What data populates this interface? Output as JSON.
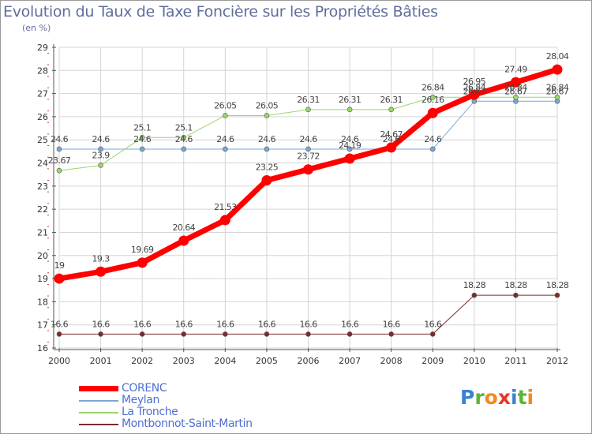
{
  "title": "Evolution du Taux de Taxe Foncière sur les Propriétés Bâties",
  "subtitle": "(en %)",
  "logo": {
    "text": "Proxiti",
    "letters": [
      {
        "ch": "P",
        "color": "#3d7fd0"
      },
      {
        "ch": "r",
        "color": "#5ab43a"
      },
      {
        "ch": "o",
        "color": "#f08a1c"
      },
      {
        "ch": "x",
        "color": "#e03a2c"
      },
      {
        "ch": "i",
        "color": "#3d7fd0"
      },
      {
        "ch": "t",
        "color": "#5ab43a"
      },
      {
        "ch": "i",
        "color": "#f08a1c"
      }
    ]
  },
  "chart_data": {
    "type": "line",
    "x": [
      "2000",
      "2001",
      "2002",
      "2003",
      "2004",
      "2005",
      "2006",
      "2007",
      "2008",
      "2009",
      "2010",
      "2011",
      "2012"
    ],
    "ylim": [
      16,
      29
    ],
    "yticks": [
      16,
      17,
      18,
      19,
      20,
      21,
      22,
      23,
      24,
      25,
      26,
      27,
      28,
      29
    ],
    "grid": true,
    "legend": "bottom-left",
    "series": [
      {
        "name": "Montbonnot-Saint-Martin",
        "color": "#7b2b2b",
        "width": 1,
        "values": [
          16.6,
          16.6,
          16.6,
          16.6,
          16.6,
          16.6,
          16.6,
          16.6,
          16.6,
          16.6,
          18.28,
          18.28,
          18.28
        ],
        "labels": [
          "16.6",
          "16.6",
          "16.6",
          "16.6",
          "16.6",
          "16.6",
          "16.6",
          "16.6",
          "16.6",
          "16.6",
          "18.28",
          "18.28",
          "18.28"
        ]
      },
      {
        "name": "Meylan",
        "color": "#7aa7d6",
        "width": 1,
        "values": [
          24.6,
          24.6,
          24.6,
          24.6,
          24.6,
          24.6,
          24.6,
          24.6,
          24.6,
          24.6,
          26.67,
          26.67,
          26.67
        ],
        "labels": [
          "24.6",
          "24.6",
          "24.6",
          "24.6",
          "24.6",
          "24.6",
          "24.6",
          "24.6",
          "24.6",
          "24.6",
          "26.67",
          "26.67",
          "26.67"
        ]
      },
      {
        "name": "La Tronche",
        "color": "#9ad66a",
        "width": 1,
        "values": [
          23.67,
          23.9,
          25.1,
          25.1,
          26.05,
          26.05,
          26.31,
          26.31,
          26.31,
          26.84,
          26.84,
          26.84,
          26.84
        ],
        "labels": [
          "23.67",
          "23.9",
          "25.1",
          "25.1",
          "26.05",
          "26.05",
          "26.31",
          "26.31",
          "26.31",
          "26.84",
          "26.84",
          "26.84",
          "26.84"
        ]
      },
      {
        "name": "CORENC",
        "color": "#ff0000",
        "width": 7,
        "values": [
          19,
          19.3,
          19.69,
          20.64,
          21.53,
          23.25,
          23.72,
          24.19,
          24.67,
          26.16,
          26.95,
          27.49,
          28.04
        ],
        "labels": [
          "19",
          "19.3",
          "19.69",
          "20.64",
          "21.53",
          "23.25",
          "23.72",
          "24.19",
          "24.67",
          "26.16",
          "26.95",
          "27.49",
          "28.04"
        ]
      }
    ],
    "legend_order": [
      "CORENC",
      "Meylan",
      "La Tronche",
      "Montbonnot-Saint-Martin"
    ]
  }
}
